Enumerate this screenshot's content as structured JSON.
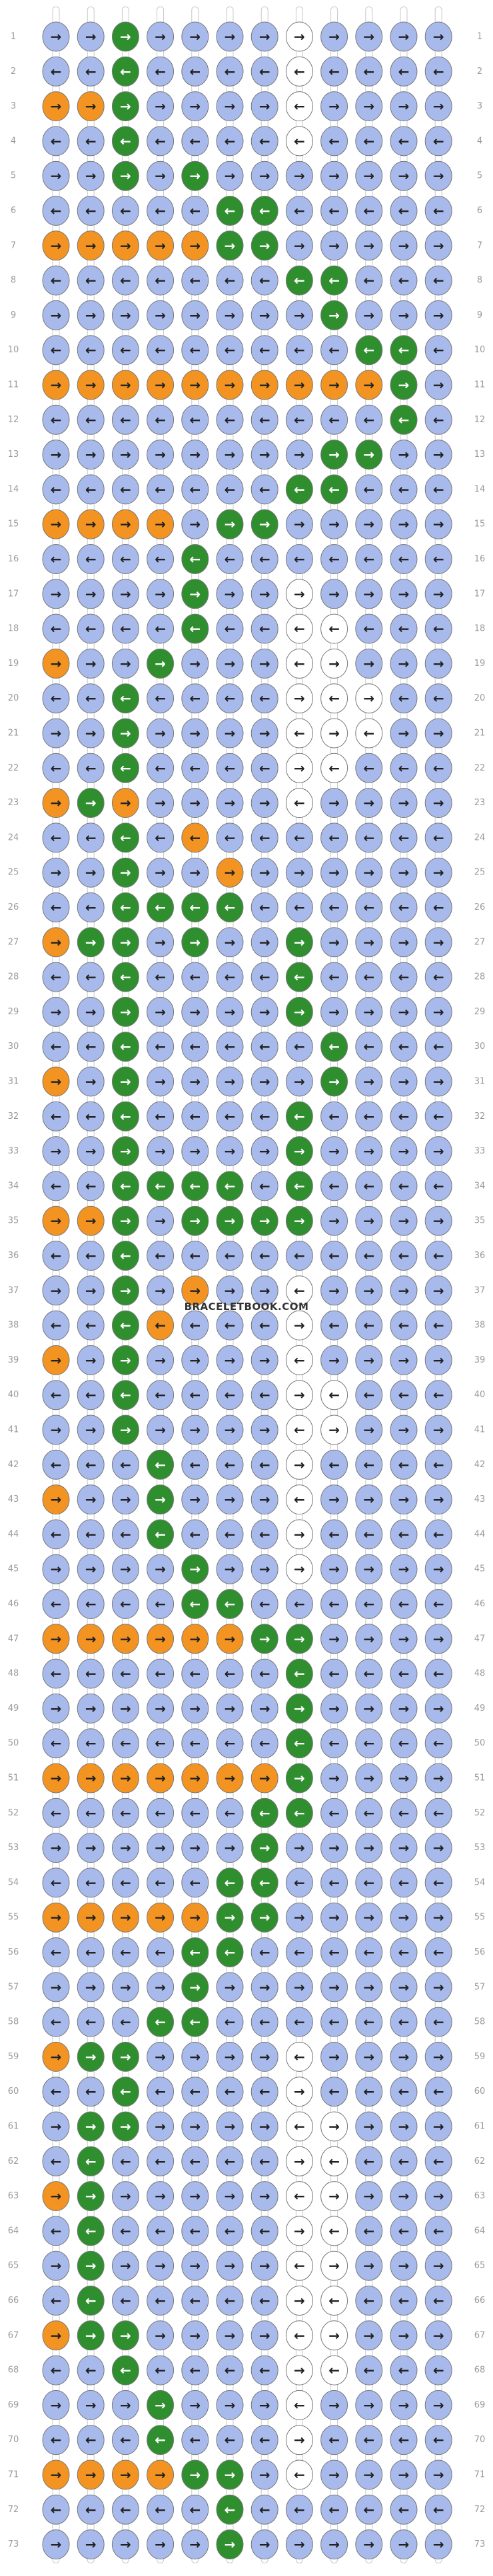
{
  "watermark": "BRACELETBOOK.COM",
  "palette": {
    "b": "#a8baec",
    "g": "#2f8f2f",
    "o": "#f39322",
    "w": "#ffffff"
  },
  "rows": [
    {
      "label": 1,
      "colors": "bbgbbbbwbbbb",
      "arrows": [
        "→",
        "→",
        "→",
        "→",
        "→",
        "→",
        "→",
        "→",
        "→",
        "→",
        "→",
        "→"
      ]
    },
    {
      "label": 2,
      "colors": "bbgbbbbwbbbb",
      "arrows": [
        "←",
        "←",
        "←",
        "←",
        "←",
        "←",
        "←",
        "←",
        "←",
        "←",
        "←",
        "←"
      ]
    },
    {
      "label": 3,
      "colors": "oogbbbbwbbbb",
      "arrows": [
        "→",
        "→",
        "→",
        "→",
        "→",
        "→",
        "→",
        "←",
        "→",
        "→",
        "→",
        "→"
      ]
    },
    {
      "label": 4,
      "colors": "bbgbbbbwbbbb",
      "arrows": [
        "←",
        "←",
        "←",
        "←",
        "←",
        "←",
        "←",
        "←",
        "←",
        "←",
        "←",
        "←"
      ]
    },
    {
      "label": 5,
      "colors": "bbgbgbbbbbbb",
      "arrows": [
        "→",
        "→",
        "→",
        "→",
        "→",
        "→",
        "→",
        "→",
        "→",
        "→",
        "→",
        "→"
      ]
    },
    {
      "label": 6,
      "colors": "bbbbbggbbbbb",
      "arrows": [
        "←",
        "←",
        "←",
        "←",
        "←",
        "←",
        "←",
        "←",
        "←",
        "←",
        "←",
        "←"
      ]
    },
    {
      "label": 7,
      "colors": "oooooggbbbbb",
      "arrows": [
        "→",
        "→",
        "→",
        "→",
        "→",
        "→",
        "→",
        "→",
        "→",
        "→",
        "→",
        "→"
      ]
    },
    {
      "label": 8,
      "colors": "bbbbbbbggbbb",
      "arrows": [
        "←",
        "←",
        "←",
        "←",
        "←",
        "←",
        "←",
        "←",
        "←",
        "←",
        "←",
        "←"
      ]
    },
    {
      "label": 9,
      "colors": "bbbbbbbbgbbb",
      "arrows": [
        "→",
        "→",
        "→",
        "→",
        "→",
        "→",
        "→",
        "→",
        "→",
        "→",
        "→",
        "→"
      ]
    },
    {
      "label": 10,
      "colors": "bbbbbbbbbggb",
      "arrows": [
        "←",
        "←",
        "←",
        "←",
        "←",
        "←",
        "←",
        "←",
        "←",
        "←",
        "←",
        "←"
      ]
    },
    {
      "label": 11,
      "colors": "oooooooooogb",
      "arrows": [
        "→",
        "→",
        "→",
        "→",
        "→",
        "→",
        "→",
        "→",
        "→",
        "→",
        "→",
        "→"
      ]
    },
    {
      "label": 12,
      "colors": "bbbbbbbbbbgb",
      "arrows": [
        "←",
        "←",
        "←",
        "←",
        "←",
        "←",
        "←",
        "←",
        "←",
        "←",
        "←",
        "←"
      ]
    },
    {
      "label": 13,
      "colors": "bbbbbbbbggbb",
      "arrows": [
        "→",
        "→",
        "→",
        "→",
        "→",
        "→",
        "→",
        "→",
        "→",
        "→",
        "→",
        "→"
      ]
    },
    {
      "label": 14,
      "colors": "bbbbbbbggbbb",
      "arrows": [
        "←",
        "←",
        "←",
        "←",
        "←",
        "←",
        "←",
        "←",
        "←",
        "←",
        "←",
        "←"
      ]
    },
    {
      "label": 15,
      "colors": "oooobggbbbbb",
      "arrows": [
        "→",
        "→",
        "→",
        "→",
        "→",
        "→",
        "→",
        "→",
        "→",
        "→",
        "→",
        "→"
      ]
    },
    {
      "label": 16,
      "colors": "bbbbgbbbbbbb",
      "arrows": [
        "←",
        "←",
        "←",
        "←",
        "←",
        "←",
        "←",
        "←",
        "←",
        "←",
        "←",
        "←"
      ]
    },
    {
      "label": 17,
      "colors": "bbbbgbbwbbbb",
      "arrows": [
        "→",
        "→",
        "→",
        "→",
        "→",
        "→",
        "→",
        "→",
        "→",
        "→",
        "→",
        "→"
      ]
    },
    {
      "label": 18,
      "colors": "bbbbgbbwwbbb",
      "arrows": [
        "←",
        "←",
        "←",
        "←",
        "←",
        "←",
        "←",
        "←",
        "←",
        "←",
        "←",
        "←"
      ]
    },
    {
      "label": 19,
      "colors": "obbgbbbwwbbb",
      "arrows": [
        "→",
        "→",
        "→",
        "→",
        "→",
        "→",
        "→",
        "←",
        "→",
        "→",
        "→",
        "→"
      ]
    },
    {
      "label": 20,
      "colors": "bbgbbbbwwwbb",
      "arrows": [
        "←",
        "←",
        "←",
        "←",
        "←",
        "←",
        "←",
        "→",
        "←",
        "→",
        "←",
        "←"
      ]
    },
    {
      "label": 21,
      "colors": "bbgbbbbwwwbb",
      "arrows": [
        "→",
        "→",
        "→",
        "→",
        "→",
        "→",
        "→",
        "←",
        "→",
        "←",
        "→",
        "→"
      ]
    },
    {
      "label": 22,
      "colors": "bbgbbbbwwbbb",
      "arrows": [
        "←",
        "←",
        "←",
        "←",
        "←",
        "←",
        "←",
        "→",
        "←",
        "←",
        "←",
        "←"
      ]
    },
    {
      "label": 23,
      "colors": "ogobbbbwbbbb",
      "arrows": [
        "→",
        "→",
        "→",
        "→",
        "→",
        "→",
        "→",
        "←",
        "→",
        "→",
        "→",
        "→"
      ]
    },
    {
      "label": 24,
      "colors": "bbgbobbbbbbb",
      "arrows": [
        "←",
        "←",
        "←",
        "←",
        "←",
        "←",
        "←",
        "←",
        "←",
        "←",
        "←",
        "←"
      ]
    },
    {
      "label": 25,
      "colors": "bbgbbobbbbbb",
      "arrows": [
        "→",
        "→",
        "→",
        "→",
        "→",
        "→",
        "→",
        "→",
        "→",
        "→",
        "→",
        "→"
      ]
    },
    {
      "label": 26,
      "colors": "bbggggbbbbbb",
      "arrows": [
        "←",
        "←",
        "←",
        "←",
        "←",
        "←",
        "←",
        "←",
        "←",
        "←",
        "←",
        "←"
      ]
    },
    {
      "label": 27,
      "colors": "oggbgbbgbbbb",
      "arrows": [
        "→",
        "→",
        "→",
        "→",
        "→",
        "→",
        "→",
        "→",
        "→",
        "→",
        "→",
        "→"
      ]
    },
    {
      "label": 28,
      "colors": "bbgbbbbgbbbb",
      "arrows": [
        "←",
        "←",
        "←",
        "←",
        "←",
        "←",
        "←",
        "←",
        "←",
        "←",
        "←",
        "←"
      ]
    },
    {
      "label": 29,
      "colors": "bbgbbbbgbbbb",
      "arrows": [
        "→",
        "→",
        "→",
        "→",
        "→",
        "→",
        "→",
        "→",
        "→",
        "→",
        "→",
        "→"
      ]
    },
    {
      "label": 30,
      "colors": "bbgbbbbbgbbb",
      "arrows": [
        "←",
        "←",
        "←",
        "←",
        "←",
        "←",
        "←",
        "←",
        "←",
        "←",
        "←",
        "←"
      ]
    },
    {
      "label": 31,
      "colors": "obgbbbbbgbbb",
      "arrows": [
        "→",
        "→",
        "→",
        "→",
        "→",
        "→",
        "→",
        "→",
        "→",
        "→",
        "→",
        "→"
      ]
    },
    {
      "label": 32,
      "colors": "bbgbbbbgbbbb",
      "arrows": [
        "←",
        "←",
        "←",
        "←",
        "←",
        "←",
        "←",
        "←",
        "←",
        "←",
        "←",
        "←"
      ]
    },
    {
      "label": 33,
      "colors": "bbgbbbbgbbbb",
      "arrows": [
        "→",
        "→",
        "→",
        "→",
        "→",
        "→",
        "→",
        "→",
        "→",
        "→",
        "→",
        "→"
      ]
    },
    {
      "label": 34,
      "colors": "bbggggbgbbbb",
      "arrows": [
        "←",
        "←",
        "←",
        "←",
        "←",
        "←",
        "←",
        "←",
        "←",
        "←",
        "←",
        "←"
      ]
    },
    {
      "label": 35,
      "colors": "oogbggggbbbb",
      "arrows": [
        "→",
        "→",
        "→",
        "→",
        "→",
        "→",
        "→",
        "→",
        "→",
        "→",
        "→",
        "→"
      ]
    },
    {
      "label": 36,
      "colors": "bbgbbbbbbbbb",
      "arrows": [
        "←",
        "←",
        "←",
        "←",
        "←",
        "←",
        "←",
        "←",
        "←",
        "←",
        "←",
        "←"
      ]
    },
    {
      "label": 37,
      "colors": "bbgbobbwbbbb",
      "arrows": [
        "→",
        "→",
        "→",
        "→",
        "→",
        "→",
        "→",
        "←",
        "→",
        "→",
        "→",
        "→"
      ]
    },
    {
      "label": 38,
      "colors": "bbgobbbwbbbb",
      "arrows": [
        "←",
        "←",
        "←",
        "←",
        "←",
        "←",
        "←",
        "→",
        "←",
        "←",
        "←",
        "←"
      ]
    },
    {
      "label": 39,
      "colors": "obgbbbbwbbbb",
      "arrows": [
        "→",
        "→",
        "→",
        "→",
        "→",
        "→",
        "→",
        "←",
        "→",
        "→",
        "→",
        "→"
      ]
    },
    {
      "label": 40,
      "colors": "bbgbbbbwwbbb",
      "arrows": [
        "←",
        "←",
        "←",
        "←",
        "←",
        "←",
        "←",
        "→",
        "←",
        "←",
        "←",
        "←"
      ]
    },
    {
      "label": 41,
      "colors": "bbgbbbbwwbbb",
      "arrows": [
        "→",
        "→",
        "→",
        "→",
        "→",
        "→",
        "→",
        "←",
        "→",
        "→",
        "→",
        "→"
      ]
    },
    {
      "label": 42,
      "colors": "bbbgbbbwbbbb",
      "arrows": [
        "←",
        "←",
        "←",
        "←",
        "←",
        "←",
        "←",
        "→",
        "←",
        "←",
        "←",
        "←"
      ]
    },
    {
      "label": 43,
      "colors": "obbgbbbwbbbb",
      "arrows": [
        "→",
        "→",
        "→",
        "→",
        "→",
        "→",
        "→",
        "←",
        "→",
        "→",
        "→",
        "→"
      ]
    },
    {
      "label": 44,
      "colors": "bbbgbbbwbbbb",
      "arrows": [
        "←",
        "←",
        "←",
        "←",
        "←",
        "←",
        "←",
        "→",
        "←",
        "←",
        "←",
        "←"
      ]
    },
    {
      "label": 45,
      "colors": "bbbbgbbwbbbb",
      "arrows": [
        "→",
        "→",
        "→",
        "→",
        "→",
        "→",
        "→",
        "→",
        "→",
        "→",
        "→",
        "→"
      ]
    },
    {
      "label": 46,
      "colors": "bbbbggbbbbbb",
      "arrows": [
        "←",
        "←",
        "←",
        "←",
        "←",
        "←",
        "←",
        "←",
        "←",
        "←",
        "←",
        "←"
      ]
    },
    {
      "label": 47,
      "colors": "ooooooggbbbb",
      "arrows": [
        "→",
        "→",
        "→",
        "→",
        "→",
        "→",
        "→",
        "→",
        "→",
        "→",
        "→",
        "→"
      ]
    },
    {
      "label": 48,
      "colors": "bbbbbbbgbbbb",
      "arrows": [
        "←",
        "←",
        "←",
        "←",
        "←",
        "←",
        "←",
        "←",
        "←",
        "←",
        "←",
        "←"
      ]
    },
    {
      "label": 49,
      "colors": "bbbbbbbgbbbb",
      "arrows": [
        "→",
        "→",
        "→",
        "→",
        "→",
        "→",
        "→",
        "→",
        "→",
        "→",
        "→",
        "→"
      ]
    },
    {
      "label": 50,
      "colors": "bbbbbbbgbbbb",
      "arrows": [
        "←",
        "←",
        "←",
        "←",
        "←",
        "←",
        "←",
        "←",
        "←",
        "←",
        "←",
        "←"
      ]
    },
    {
      "label": 51,
      "colors": "ooooooogbbbb",
      "arrows": [
        "→",
        "→",
        "→",
        "→",
        "→",
        "→",
        "→",
        "→",
        "→",
        "→",
        "→",
        "→"
      ]
    },
    {
      "label": 52,
      "colors": "bbbbbbggbbbb",
      "arrows": [
        "←",
        "←",
        "←",
        "←",
        "←",
        "←",
        "←",
        "←",
        "←",
        "←",
        "←",
        "←"
      ]
    },
    {
      "label": 53,
      "colors": "bbbbbbgbbbbb",
      "arrows": [
        "→",
        "→",
        "→",
        "→",
        "→",
        "→",
        "→",
        "→",
        "→",
        "→",
        "→",
        "→"
      ]
    },
    {
      "label": 54,
      "colors": "bbbbbggbbbbb",
      "arrows": [
        "←",
        "←",
        "←",
        "←",
        "←",
        "←",
        "←",
        "←",
        "←",
        "←",
        "←",
        "←"
      ]
    },
    {
      "label": 55,
      "colors": "oooooggbbbbb",
      "arrows": [
        "→",
        "→",
        "→",
        "→",
        "→",
        "→",
        "→",
        "→",
        "→",
        "→",
        "→",
        "→"
      ]
    },
    {
      "label": 56,
      "colors": "bbbbggbbbbbb",
      "arrows": [
        "←",
        "←",
        "←",
        "←",
        "←",
        "←",
        "←",
        "←",
        "←",
        "←",
        "←",
        "←"
      ]
    },
    {
      "label": 57,
      "colors": "bbbbgbbbbbbb",
      "arrows": [
        "→",
        "→",
        "→",
        "→",
        "→",
        "→",
        "→",
        "→",
        "→",
        "→",
        "→",
        "→"
      ]
    },
    {
      "label": 58,
      "colors": "bbbggbbbbbbb",
      "arrows": [
        "←",
        "←",
        "←",
        "←",
        "←",
        "←",
        "←",
        "←",
        "←",
        "←",
        "←",
        "←"
      ]
    },
    {
      "label": 59,
      "colors": "oggbbbbwbbbb",
      "arrows": [
        "→",
        "→",
        "→",
        "→",
        "→",
        "→",
        "→",
        "←",
        "→",
        "→",
        "→",
        "→"
      ]
    },
    {
      "label": 60,
      "colors": "bbgbbbbwbbbb",
      "arrows": [
        "←",
        "←",
        "←",
        "←",
        "←",
        "←",
        "←",
        "→",
        "←",
        "←",
        "←",
        "←"
      ]
    },
    {
      "label": 61,
      "colors": "bggbbbbwwbbb",
      "arrows": [
        "→",
        "→",
        "→",
        "→",
        "→",
        "→",
        "→",
        "←",
        "→",
        "→",
        "→",
        "→"
      ]
    },
    {
      "label": 62,
      "colors": "bgbbbbbwwbbb",
      "arrows": [
        "←",
        "←",
        "←",
        "←",
        "←",
        "←",
        "←",
        "→",
        "←",
        "←",
        "←",
        "←"
      ]
    },
    {
      "label": 63,
      "colors": "ogbbbbbwwbbb",
      "arrows": [
        "→",
        "→",
        "→",
        "→",
        "→",
        "→",
        "→",
        "←",
        "→",
        "→",
        "→",
        "→"
      ]
    },
    {
      "label": 64,
      "colors": "bgbbbbbwwbbb",
      "arrows": [
        "←",
        "←",
        "←",
        "←",
        "←",
        "←",
        "←",
        "→",
        "←",
        "←",
        "←",
        "←"
      ]
    },
    {
      "label": 65,
      "colors": "bgbbbbbwwbbb",
      "arrows": [
        "→",
        "→",
        "→",
        "→",
        "→",
        "→",
        "→",
        "←",
        "→",
        "→",
        "→",
        "→"
      ]
    },
    {
      "label": 66,
      "colors": "bgbbbbbwwbbb",
      "arrows": [
        "←",
        "←",
        "←",
        "←",
        "←",
        "←",
        "←",
        "→",
        "←",
        "←",
        "←",
        "←"
      ]
    },
    {
      "label": 67,
      "colors": "oggbbbbwwbbb",
      "arrows": [
        "→",
        "→",
        "→",
        "→",
        "→",
        "→",
        "→",
        "←",
        "→",
        "→",
        "→",
        "→"
      ]
    },
    {
      "label": 68,
      "colors": "bbgbbbbwwbbb",
      "arrows": [
        "←",
        "←",
        "←",
        "←",
        "←",
        "←",
        "←",
        "→",
        "←",
        "←",
        "←",
        "←"
      ]
    },
    {
      "label": 69,
      "colors": "bbbgbbbwbbbb",
      "arrows": [
        "→",
        "→",
        "→",
        "→",
        "→",
        "→",
        "→",
        "←",
        "→",
        "→",
        "→",
        "→"
      ]
    },
    {
      "label": 70,
      "colors": "bbbgbbbwbbbb",
      "arrows": [
        "←",
        "←",
        "←",
        "←",
        "←",
        "←",
        "←",
        "→",
        "←",
        "←",
        "←",
        "←"
      ]
    },
    {
      "label": 71,
      "colors": "ooooggbwbbbb",
      "arrows": [
        "→",
        "→",
        "→",
        "→",
        "→",
        "→",
        "→",
        "←",
        "→",
        "→",
        "→",
        "→"
      ]
    },
    {
      "label": 72,
      "colors": "bbbbbgbbbbbb",
      "arrows": [
        "←",
        "←",
        "←",
        "←",
        "←",
        "←",
        "←",
        "←",
        "←",
        "←",
        "←",
        "←"
      ]
    },
    {
      "label": 73,
      "colors": "bbbbbgbbbbbb",
      "arrows": [
        "→",
        "→",
        "→",
        "→",
        "→",
        "→",
        "→",
        "→",
        "→",
        "→",
        "→",
        "→"
      ]
    }
  ]
}
